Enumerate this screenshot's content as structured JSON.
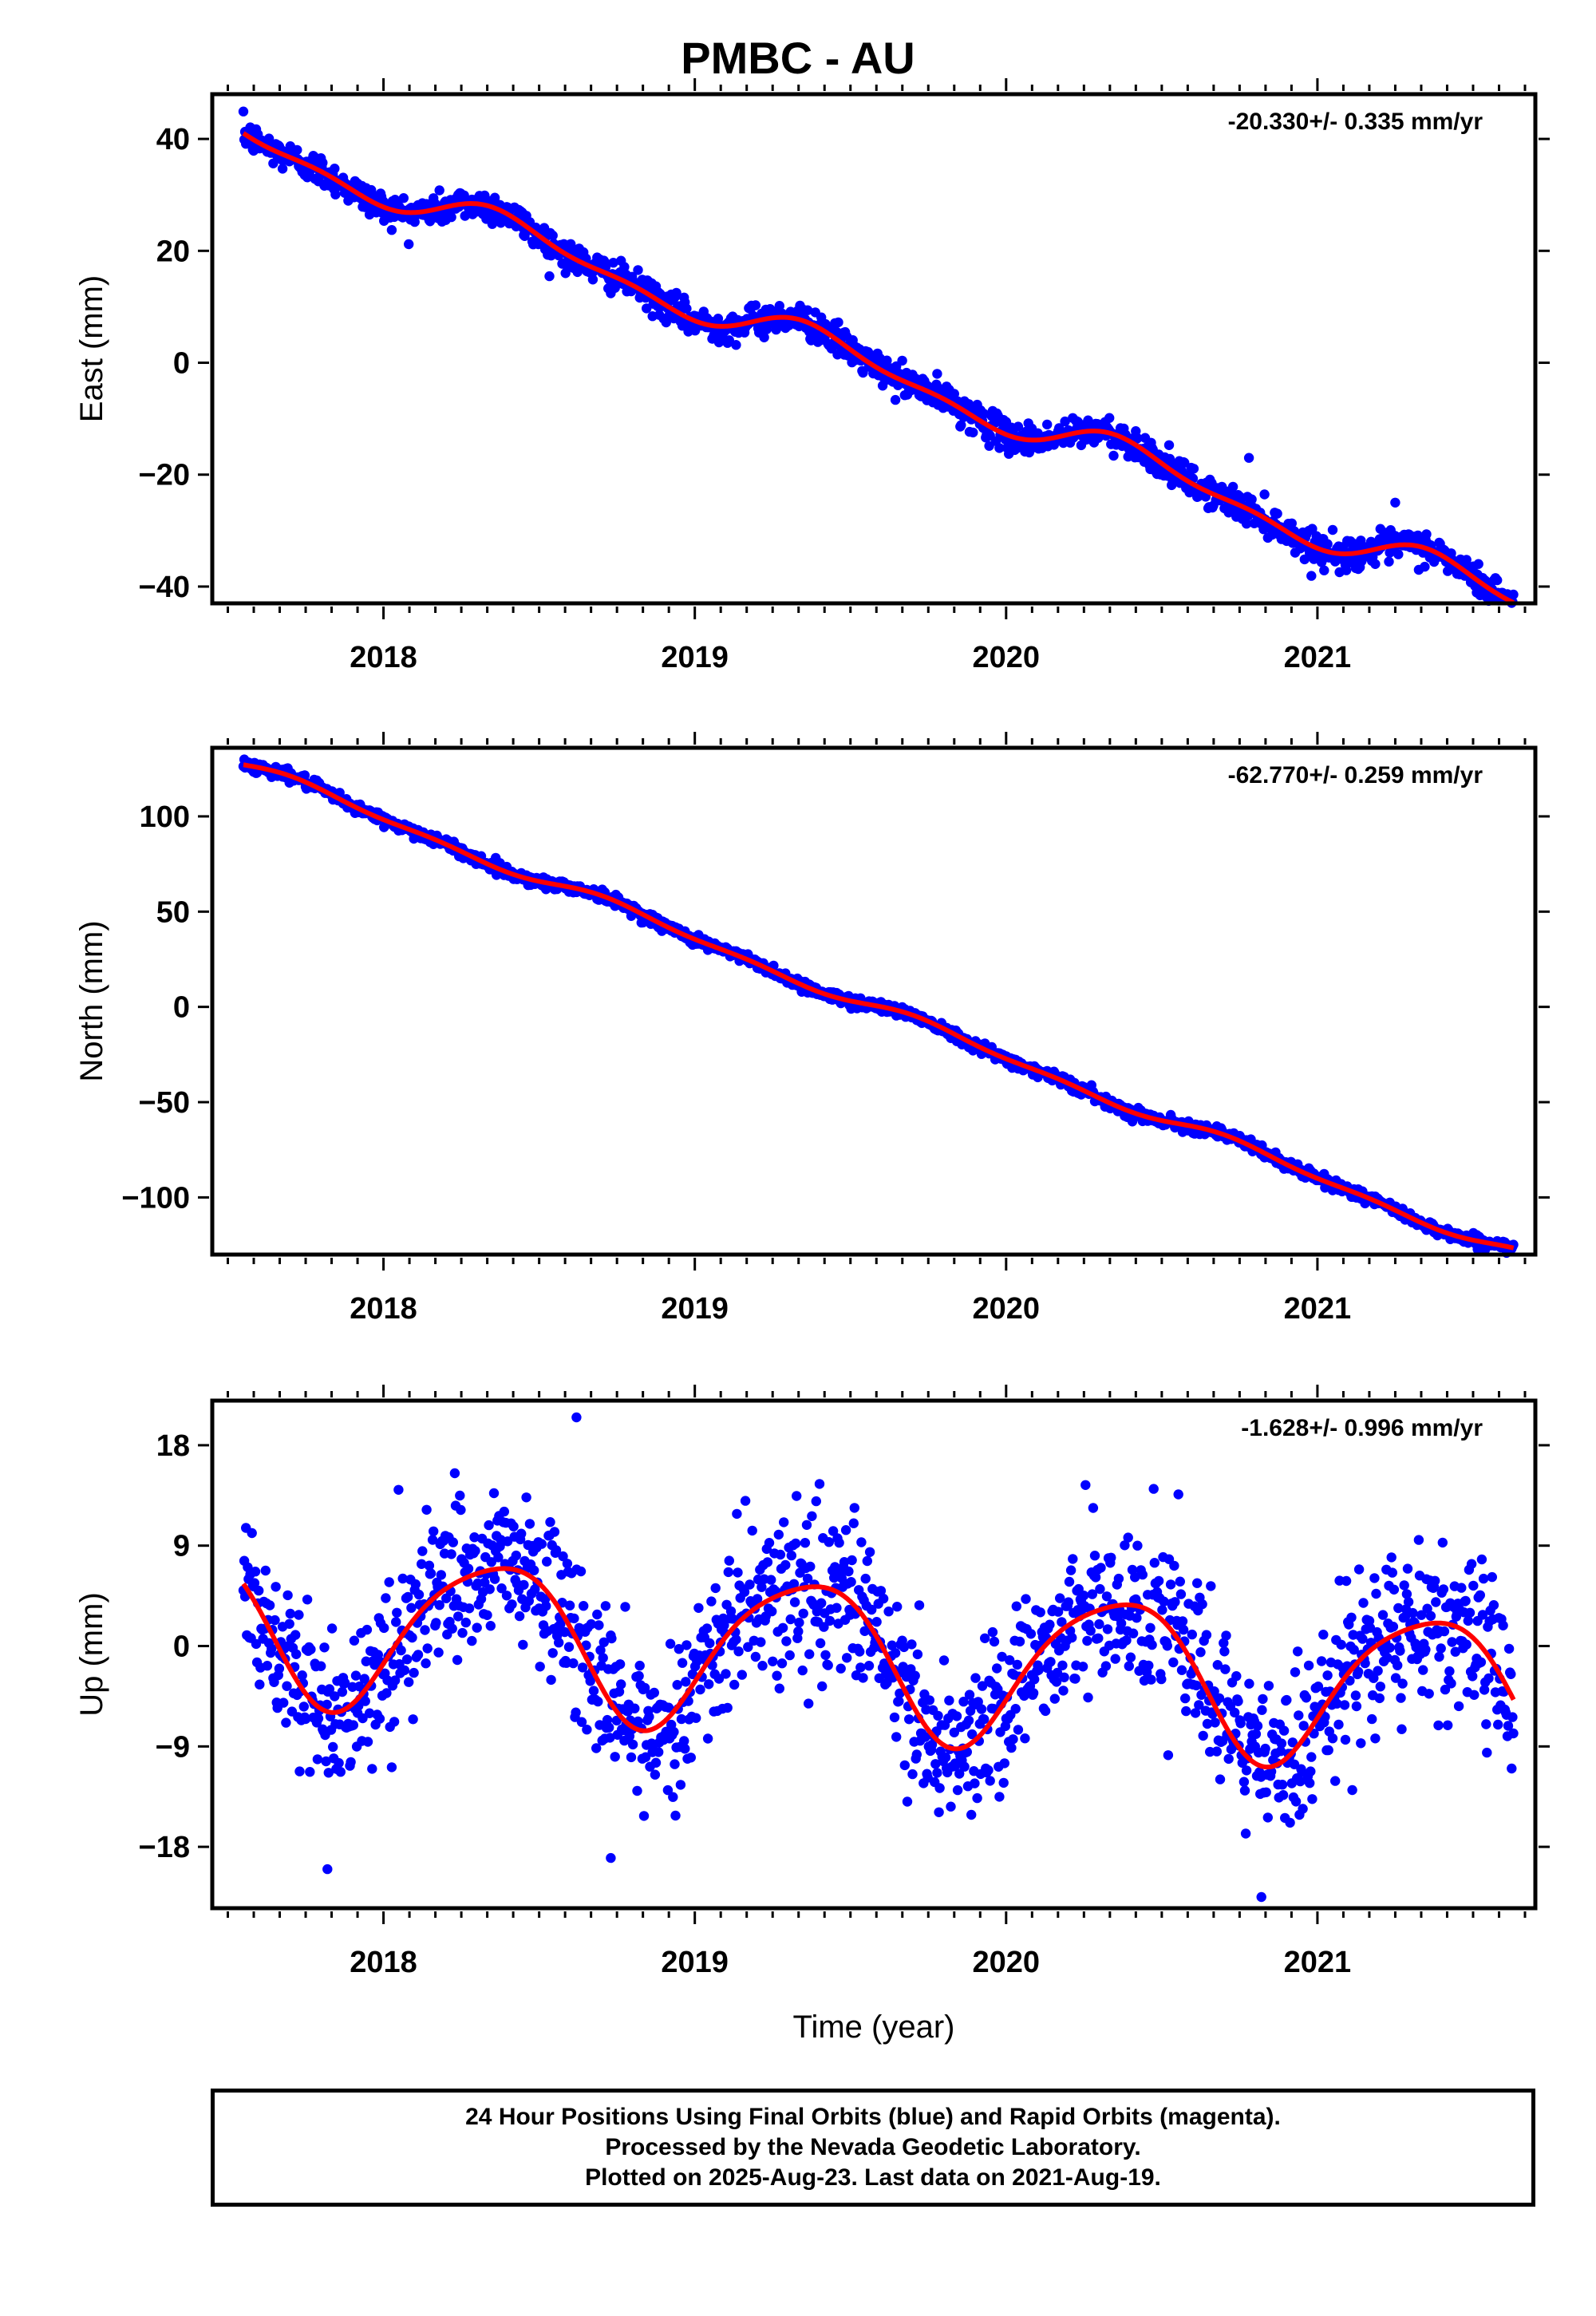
{
  "title": "PMBC - AU",
  "footer": {
    "line1": "24 Hour Positions Using Final Orbits (blue) and Rapid Orbits (magenta).",
    "line2": "Processed by the Nevada Geodetic Laboratory.",
    "line3": "Plotted on 2025-Aug-23. Last data on 2021-Aug-19."
  },
  "colors": {
    "points": "#0000ff",
    "fit": "#ff0000",
    "frame": "#000000"
  },
  "chart_data": [
    {
      "type": "scatter",
      "component": "east",
      "ylabel": "East (mm)",
      "rate_label": "-20.330+/- 0.335 mm/yr",
      "xlim": [
        2017.45,
        2021.7
      ],
      "ylim": [
        -43,
        48
      ],
      "x_ticks": [
        2018,
        2019,
        2020,
        2021
      ],
      "y_ticks": [
        40,
        20,
        0,
        -20,
        -40
      ],
      "y_tick_labels": [
        "40",
        "20",
        "0",
        "−20",
        "−40"
      ],
      "x_start": 2017.55,
      "x_end": 2021.63,
      "trend": {
        "intercept_at_2019": 10.8,
        "slope_mm_per_yr": -20.33
      },
      "seasonal": {
        "a1_cos": -2.5,
        "b1_sin": 1.5,
        "a2_cos": -0.8,
        "b2_sin": -0.9
      },
      "scatter_sigma": 1.4,
      "outliers": [
        [
          2018.2,
          25.5
        ],
        [
          2020.78,
          -17
        ],
        [
          2021.25,
          -25
        ]
      ],
      "fit_series_name": "fit (red)"
    },
    {
      "type": "scatter",
      "component": "north",
      "ylabel": "North (mm)",
      "rate_label": "-62.770+/- 0.259 mm/yr",
      "xlim": [
        2017.45,
        2021.7
      ],
      "ylim": [
        -130,
        136
      ],
      "x_ticks": [
        2018,
        2019,
        2020,
        2021
      ],
      "y_ticks": [
        100,
        50,
        0,
        -50,
        -100
      ],
      "y_tick_labels": [
        "100",
        "50",
        "0",
        "−50",
        "−100"
      ],
      "x_start": 2017.55,
      "x_end": 2021.63,
      "trend": {
        "intercept_at_2019": 36.0,
        "slope_mm_per_yr": -62.77
      },
      "seasonal": {
        "a1_cos": 0.5,
        "b1_sin": -2.5,
        "a2_cos": -1.0,
        "b2_sin": 1.0
      },
      "scatter_sigma": 1.5,
      "outliers": [],
      "fit_series_name": "fit (red)"
    },
    {
      "type": "scatter",
      "component": "up",
      "ylabel": "Up (mm)",
      "rate_label": "-1.628+/- 0.996 mm/yr",
      "xlim": [
        2017.45,
        2021.7
      ],
      "ylim": [
        -23.5,
        22
      ],
      "x_ticks": [
        2018,
        2019,
        2020,
        2021
      ],
      "y_ticks": [
        18,
        9,
        0,
        -9,
        -18
      ],
      "y_tick_labels": [
        "18",
        "9",
        "0",
        "−9",
        "−18"
      ],
      "xlabel": "Time (year)",
      "x_start": 2017.55,
      "x_end": 2021.63,
      "trend": {
        "intercept_at_2019": 0.0,
        "slope_mm_per_yr": -1.628
      },
      "seasonal": {
        "a1_cos": -4.0,
        "b1_sin": 5.5,
        "a2_cos": 0.8,
        "b2_sin": 0.8
      },
      "scatter_sigma": 3.6,
      "outliers": [
        [
          2018.62,
          20.5
        ],
        [
          2017.82,
          -20
        ],
        [
          2020.82,
          -22.5
        ],
        [
          2018.73,
          -19
        ]
      ],
      "fit_series_name": "fit (red)"
    }
  ]
}
